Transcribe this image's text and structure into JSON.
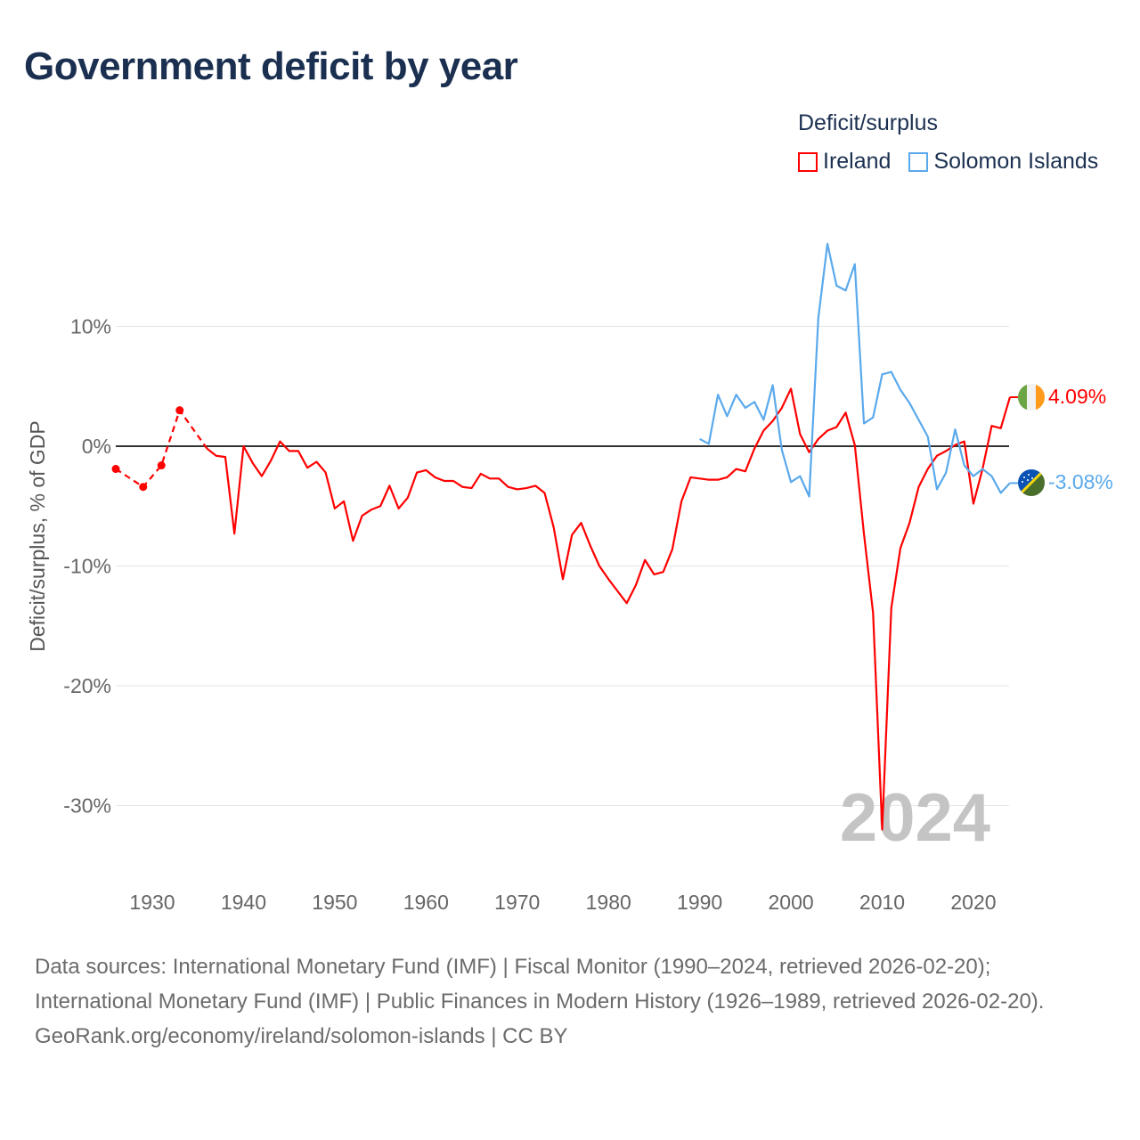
{
  "title": "Government deficit by year",
  "legend": {
    "title": "Deficit/surplus",
    "items": [
      {
        "label": "Ireland",
        "color": "#ff0000"
      },
      {
        "label": "Solomon Islands",
        "color": "#5aa9ec"
      }
    ]
  },
  "year_watermark": "2024",
  "end_labels": {
    "ireland": "4.09%",
    "solomon": "-3.08%"
  },
  "icons": {
    "ireland": "ireland-flag-icon",
    "solomon": "solomon-islands-flag-icon"
  },
  "chart_data": {
    "type": "line",
    "title": "Government deficit by year",
    "xlabel": "",
    "ylabel": "Deficit/surplus, % of GDP",
    "xlim": [
      1926,
      2024
    ],
    "ylim": [
      -33,
      17
    ],
    "x_ticks": [
      1930,
      1940,
      1950,
      1960,
      1970,
      1980,
      1990,
      2000,
      2010,
      2020
    ],
    "x_tick_labels": [
      "1930",
      "1940",
      "1950",
      "1960",
      "1970",
      "1980",
      "1990",
      "2000",
      "2010",
      "2020"
    ],
    "y_ticks": [
      10,
      0,
      -10,
      -20,
      -30
    ],
    "y_tick_labels": [
      "10%",
      "0%",
      "-10%",
      "-20%",
      "-30%"
    ],
    "grid": true,
    "legend_position": "top-right",
    "series": [
      {
        "name": "Ireland",
        "color": "#ff0000",
        "sparse_points": {
          "x": [
            1926,
            1929,
            1931,
            1933,
            1936
          ],
          "y": [
            -1.9,
            -3.4,
            -1.6,
            3.0,
            -0.2
          ]
        },
        "x": [
          1936,
          1937,
          1938,
          1939,
          1940,
          1941,
          1942,
          1943,
          1944,
          1945,
          1946,
          1947,
          1948,
          1949,
          1950,
          1951,
          1952,
          1953,
          1954,
          1955,
          1956,
          1957,
          1958,
          1959,
          1960,
          1961,
          1962,
          1963,
          1964,
          1965,
          1966,
          1967,
          1968,
          1969,
          1970,
          1971,
          1972,
          1973,
          1974,
          1975,
          1976,
          1977,
          1978,
          1979,
          1980,
          1981,
          1982,
          1983,
          1984,
          1985,
          1986,
          1987,
          1988,
          1989,
          1990,
          1991,
          1992,
          1993,
          1994,
          1995,
          1996,
          1997,
          1998,
          1999,
          2000,
          2001,
          2002,
          2003,
          2004,
          2005,
          2006,
          2007,
          2008,
          2009,
          2010,
          2011,
          2012,
          2013,
          2014,
          2015,
          2016,
          2017,
          2018,
          2019,
          2020,
          2021,
          2022,
          2023,
          2024
        ],
        "y": [
          -0.2,
          -0.8,
          -0.9,
          -7.3,
          0.0,
          -1.4,
          -2.5,
          -1.2,
          0.4,
          -0.4,
          -0.4,
          -1.8,
          -1.3,
          -2.2,
          -5.2,
          -4.6,
          -7.9,
          -5.8,
          -5.3,
          -5.0,
          -3.3,
          -5.2,
          -4.3,
          -2.2,
          -2.0,
          -2.6,
          -2.9,
          -2.9,
          -3.4,
          -3.5,
          -2.3,
          -2.7,
          -2.7,
          -3.4,
          -3.6,
          -3.5,
          -3.3,
          -3.9,
          -6.8,
          -11.1,
          -7.4,
          -6.4,
          -8.3,
          -10.0,
          -11.1,
          -12.1,
          -13.1,
          -11.6,
          -9.5,
          -10.7,
          -10.5,
          -8.6,
          -4.6,
          -2.6,
          -2.7,
          -2.8,
          -2.8,
          -2.6,
          -1.9,
          -2.1,
          -0.2,
          1.3,
          2.1,
          3.2,
          4.8,
          1.0,
          -0.5,
          0.6,
          1.3,
          1.6,
          2.8,
          0.1,
          -7.3,
          -13.9,
          -32.0,
          -13.5,
          -8.5,
          -6.4,
          -3.4,
          -1.9,
          -0.8,
          -0.4,
          0.1,
          0.4,
          -4.8,
          -1.9,
          1.7,
          1.5,
          4.09
        ]
      },
      {
        "name": "Solomon Islands",
        "color": "#5aa9ec",
        "x": [
          1990,
          1991,
          1992,
          1993,
          1994,
          1995,
          1996,
          1997,
          1998,
          1999,
          2000,
          2001,
          2002,
          2003,
          2004,
          2005,
          2006,
          2007,
          2008,
          2009,
          2010,
          2011,
          2012,
          2013,
          2014,
          2015,
          2016,
          2017,
          2018,
          2019,
          2020,
          2021,
          2022,
          2023,
          2024
        ],
        "y": [
          0.6,
          0.2,
          4.3,
          2.5,
          4.3,
          3.2,
          3.7,
          2.2,
          5.1,
          -0.3,
          -3.0,
          -2.5,
          -4.2,
          10.7,
          16.9,
          13.4,
          13.0,
          15.2,
          1.9,
          2.4,
          6.0,
          6.2,
          4.7,
          3.6,
          2.2,
          0.8,
          -3.6,
          -2.2,
          1.4,
          -1.6,
          -2.5,
          -1.9,
          -2.5,
          -3.9,
          -3.08
        ]
      }
    ]
  },
  "footer": {
    "sources": "Data sources: International Monetary Fund (IMF) | Fiscal Monitor (1990–2024, retrieved 2026-02-20); International Monetary Fund (IMF) | Public Finances in Modern History (1926–1989, retrieved 2026-02-20).",
    "link": "GeoRank.org/economy/ireland/solomon-islands",
    "license": " | CC BY"
  }
}
